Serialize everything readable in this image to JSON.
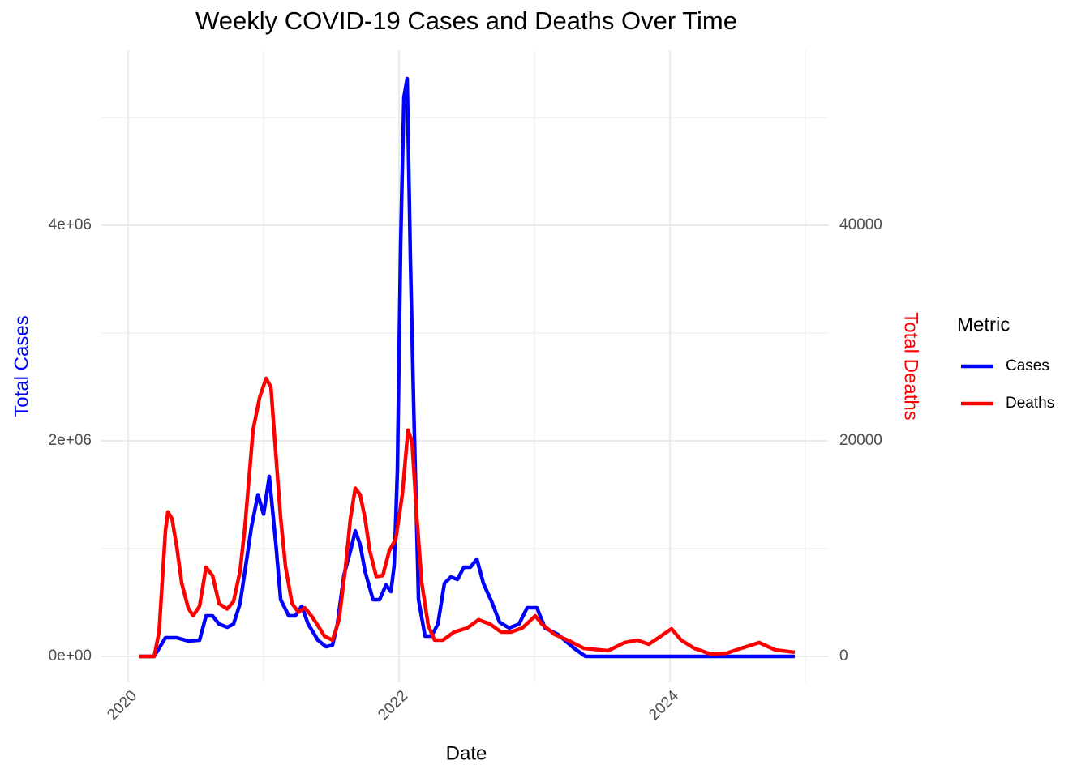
{
  "chart_data": {
    "type": "line",
    "title": "Weekly COVID-19 Cases and Deaths Over Time",
    "x_label": "Date",
    "y_label": "Total Cases",
    "y2_label": "Total Deaths",
    "legend_title": "Metric",
    "legend_position": "right",
    "grid": true,
    "xlim": [
      2019.802,
      2025.174
    ],
    "xticks": [
      2020,
      2022,
      2024
    ],
    "x_minor_grid": [
      2021,
      2023,
      2025
    ],
    "ylim": [
      -240600,
      5624000
    ],
    "yticks": [
      {
        "value": 0,
        "label": "0e+00"
      },
      {
        "value": 2000000,
        "label": "2e+06"
      },
      {
        "value": 4000000,
        "label": "4e+06"
      }
    ],
    "y_minor_grid": [
      1000000,
      3000000,
      5000000
    ],
    "y2lim": [
      -2406,
      56240
    ],
    "y2ticks": [
      0,
      20000,
      40000
    ],
    "series": [
      {
        "name": "Cases",
        "color": "#0000ff",
        "axis": "y",
        "x": [
          2020.078,
          2020.192,
          2020.228,
          2020.275,
          2020.359,
          2020.443,
          2020.527,
          2020.575,
          2020.623,
          2020.671,
          2020.731,
          2020.778,
          2020.826,
          2020.862,
          2020.91,
          2020.958,
          2021.0,
          2021.042,
          2021.09,
          2021.126,
          2021.186,
          2021.234,
          2021.281,
          2021.329,
          2021.401,
          2021.461,
          2021.509,
          2021.545,
          2021.593,
          2021.641,
          2021.677,
          2021.713,
          2021.749,
          2021.808,
          2021.856,
          2021.904,
          2021.94,
          2021.964,
          2021.988,
          2022.012,
          2022.036,
          2022.06,
          2022.084,
          2022.108,
          2022.144,
          2022.192,
          2022.24,
          2022.287,
          2022.335,
          2022.383,
          2022.431,
          2022.479,
          2022.527,
          2022.575,
          2022.623,
          2022.683,
          2022.743,
          2022.814,
          2022.886,
          2022.946,
          2023.018,
          2023.078,
          2023.174,
          2023.293,
          2023.377,
          2024.922
        ],
        "values": [
          0,
          0,
          75000,
          173000,
          173000,
          143000,
          150000,
          376000,
          376000,
          300000,
          270000,
          300000,
          489000,
          790000,
          1200000,
          1500000,
          1320000,
          1670000,
          1050000,
          526000,
          376000,
          376000,
          466000,
          300000,
          150000,
          90000,
          105000,
          300000,
          752000,
          977000,
          1165000,
          1038000,
          789000,
          526000,
          526000,
          662000,
          601000,
          842000,
          1730000,
          3835000,
          5188000,
          5361000,
          3670000,
          2330000,
          526000,
          188000,
          188000,
          300000,
          677000,
          737000,
          714000,
          827000,
          827000,
          902000,
          677000,
          511000,
          316000,
          263000,
          300000,
          451000,
          451000,
          263000,
          203000,
          75000,
          0,
          0
        ]
      },
      {
        "name": "Deaths",
        "color": "#ff0000",
        "axis": "y2",
        "x": [
          2020.078,
          2020.192,
          2020.228,
          2020.275,
          2020.293,
          2020.323,
          2020.359,
          2020.395,
          2020.443,
          2020.479,
          2020.527,
          2020.575,
          2020.623,
          2020.671,
          2020.731,
          2020.778,
          2020.826,
          2020.862,
          2020.922,
          2020.97,
          2021.018,
          2021.054,
          2021.09,
          2021.126,
          2021.162,
          2021.21,
          2021.257,
          2021.305,
          2021.353,
          2021.401,
          2021.449,
          2021.509,
          2021.557,
          2021.605,
          2021.641,
          2021.677,
          2021.713,
          2021.749,
          2021.784,
          2021.832,
          2021.88,
          2021.928,
          2021.976,
          2022.024,
          2022.066,
          2022.096,
          2022.132,
          2022.168,
          2022.216,
          2022.263,
          2022.323,
          2022.407,
          2022.503,
          2022.587,
          2022.671,
          2022.754,
          2022.826,
          2022.91,
          2023.006,
          2023.054,
          2023.15,
          2023.246,
          2023.365,
          2023.545,
          2023.665,
          2023.76,
          2023.844,
          2023.916,
          2024.012,
          2024.084,
          2024.18,
          2024.299,
          2024.419,
          2024.527,
          2024.659,
          2024.778,
          2024.922
        ],
        "values": [
          0,
          0,
          2260,
          11650,
          13400,
          12800,
          10150,
          6800,
          4500,
          3760,
          4660,
          8270,
          7500,
          4900,
          4400,
          5100,
          7900,
          12000,
          21000,
          24000,
          25800,
          25000,
          18800,
          12800,
          8300,
          4900,
          4100,
          4500,
          3760,
          2860,
          1880,
          1500,
          3400,
          8300,
          12800,
          15600,
          15000,
          12800,
          9800,
          7400,
          7500,
          9800,
          10900,
          15000,
          21000,
          19900,
          12800,
          6800,
          2860,
          1500,
          1500,
          2260,
          2630,
          3400,
          3000,
          2260,
          2260,
          2630,
          3760,
          3000,
          2030,
          1500,
          750,
          530,
          1280,
          1500,
          1130,
          1730,
          2560,
          1500,
          750,
          230,
          300,
          750,
          1280,
          600,
          380
        ]
      }
    ]
  }
}
